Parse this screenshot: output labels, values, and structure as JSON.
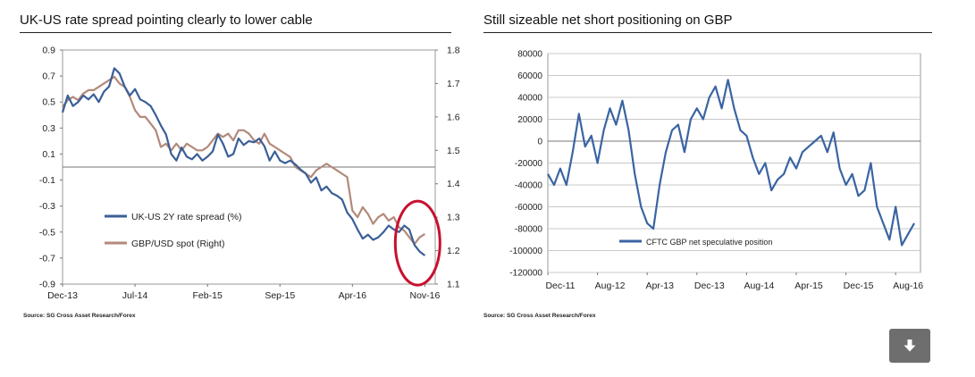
{
  "left_panel": {
    "title": "UK-US rate spread pointing clearly to lower cable",
    "source": "Source: SG Cross Asset Research/Forex"
  },
  "right_panel": {
    "title": "Still sizeable net short positioning on GBP",
    "source": "Source: SG Cross Asset Research/Forex"
  },
  "colors": {
    "spread": "#3a5f97",
    "gbpusd": "#b3897a",
    "cftc": "#3a64a3",
    "highlight_circle": "#c8102e",
    "download_button": "#6e6e6e"
  },
  "download_button": {
    "icon": "download-arrow-icon"
  },
  "chart_data": [
    {
      "type": "line",
      "title": "UK-US rate spread pointing clearly to lower cable",
      "x_ticks": [
        "Dec-13",
        "Jul-14",
        "Feb-15",
        "Sep-15",
        "Apr-16",
        "Nov-16"
      ],
      "y_left_ticks": [
        "0.9",
        "0.7",
        "0.5",
        "0.3",
        "0.1",
        "-0.1",
        "-0.3",
        "-0.5",
        "-0.7",
        "-0.9"
      ],
      "y_right_ticks": [
        "1.8",
        "1.7",
        "1.6",
        "1.5",
        "1.4",
        "1.3",
        "1.2",
        "1.1"
      ],
      "ylim_left": [
        -0.9,
        0.9
      ],
      "ylim_right": [
        1.1,
        1.8
      ],
      "xlim_months": [
        0,
        36
      ],
      "grid": true,
      "legend_position": "bottom-left",
      "annotation": "red circle around Nov-16 lows",
      "series": [
        {
          "name": "UK-US 2Y rate spread (%)",
          "axis": "left",
          "x": [
            0,
            0.5,
            1,
            1.5,
            2,
            2.5,
            3,
            3.5,
            4,
            4.5,
            5,
            5.5,
            6,
            6.5,
            7,
            7.5,
            8,
            8.5,
            9,
            9.5,
            10,
            10.5,
            11,
            11.5,
            12,
            12.5,
            13,
            13.5,
            14,
            14.5,
            15,
            15.5,
            16,
            16.5,
            17,
            17.5,
            18,
            18.5,
            19,
            19.5,
            20,
            20.5,
            21,
            21.5,
            22,
            22.5,
            23,
            23.5,
            24,
            24.5,
            25,
            25.5,
            26,
            26.5,
            27,
            27.5,
            28,
            28.5,
            29,
            29.5,
            30,
            30.5,
            31,
            31.5,
            32,
            32.5,
            33,
            33.5,
            34,
            34.5,
            35
          ],
          "values": [
            0.42,
            0.55,
            0.47,
            0.5,
            0.55,
            0.52,
            0.56,
            0.5,
            0.58,
            0.62,
            0.76,
            0.72,
            0.62,
            0.55,
            0.6,
            0.52,
            0.5,
            0.47,
            0.4,
            0.32,
            0.25,
            0.1,
            0.05,
            0.15,
            0.08,
            0.06,
            0.1,
            0.05,
            0.08,
            0.12,
            0.25,
            0.18,
            0.08,
            0.1,
            0.22,
            0.17,
            0.2,
            0.19,
            0.22,
            0.16,
            0.05,
            0.12,
            0.05,
            0.03,
            0.05,
            0.02,
            -0.02,
            -0.05,
            -0.12,
            -0.08,
            -0.18,
            -0.15,
            -0.2,
            -0.22,
            -0.25,
            -0.35,
            -0.4,
            -0.48,
            -0.55,
            -0.52,
            -0.56,
            -0.54,
            -0.5,
            -0.45,
            -0.48,
            -0.5,
            -0.45,
            -0.48,
            -0.6,
            -0.65,
            -0.68
          ]
        },
        {
          "name": "GBP/USD spot (Right)",
          "axis": "right",
          "x": [
            0,
            0.5,
            1,
            1.5,
            2,
            2.5,
            3,
            3.5,
            4,
            4.5,
            5,
            5.5,
            6,
            6.5,
            7,
            7.5,
            8,
            8.5,
            9,
            9.5,
            10,
            10.5,
            11,
            11.5,
            12,
            12.5,
            13,
            13.5,
            14,
            14.5,
            15,
            15.5,
            16,
            16.5,
            17,
            17.5,
            18,
            18.5,
            19,
            19.5,
            20,
            20.5,
            21,
            21.5,
            22,
            22.5,
            23,
            23.5,
            24,
            24.5,
            25,
            25.5,
            26,
            26.5,
            27,
            27.5,
            28,
            28.5,
            29,
            29.5,
            30,
            30.5,
            31,
            31.5,
            32,
            32.5,
            33,
            33.5,
            34,
            34.5,
            35
          ],
          "values": [
            1.63,
            1.65,
            1.66,
            1.65,
            1.67,
            1.68,
            1.68,
            1.69,
            1.7,
            1.71,
            1.72,
            1.7,
            1.69,
            1.66,
            1.62,
            1.6,
            1.6,
            1.58,
            1.56,
            1.51,
            1.52,
            1.5,
            1.52,
            1.5,
            1.52,
            1.51,
            1.5,
            1.5,
            1.51,
            1.53,
            1.55,
            1.54,
            1.55,
            1.53,
            1.56,
            1.56,
            1.55,
            1.53,
            1.52,
            1.55,
            1.52,
            1.51,
            1.5,
            1.49,
            1.48,
            1.45,
            1.44,
            1.43,
            1.42,
            1.44,
            1.45,
            1.46,
            1.45,
            1.44,
            1.43,
            1.42,
            1.32,
            1.3,
            1.33,
            1.31,
            1.28,
            1.3,
            1.31,
            1.29,
            1.3,
            1.27,
            1.26,
            1.24,
            1.22,
            1.24,
            1.25
          ]
        }
      ]
    },
    {
      "type": "line",
      "title": "Still sizeable net short positioning on GBP",
      "x_ticks": [
        "Dec-11",
        "Aug-12",
        "Apr-13",
        "Dec-13",
        "Aug-14",
        "Apr-15",
        "Dec-15",
        "Aug-16"
      ],
      "y_ticks": [
        "80000",
        "60000",
        "40000",
        "20000",
        "0",
        "-20000",
        "-40000",
        "-60000",
        "-80000",
        "-100000",
        "-120000"
      ],
      "ylim": [
        -120000,
        80000
      ],
      "xlim_months": [
        0,
        60
      ],
      "grid": true,
      "legend_position": "bottom-right",
      "series": [
        {
          "name": "CFTC GBP net speculative position",
          "x": [
            0,
            1,
            2,
            3,
            4,
            5,
            6,
            7,
            8,
            9,
            10,
            11,
            12,
            13,
            14,
            15,
            16,
            17,
            18,
            19,
            20,
            21,
            22,
            23,
            24,
            25,
            26,
            27,
            28,
            29,
            30,
            31,
            32,
            33,
            34,
            35,
            36,
            37,
            38,
            39,
            40,
            41,
            42,
            43,
            44,
            45,
            46,
            47,
            48,
            49,
            50,
            51,
            52,
            53,
            54,
            55,
            56,
            57,
            58,
            59
          ],
          "values": [
            -30000,
            -40000,
            -25000,
            -40000,
            -10000,
            25000,
            -5000,
            5000,
            -20000,
            10000,
            30000,
            15000,
            37000,
            10000,
            -30000,
            -60000,
            -75000,
            -80000,
            -40000,
            -10000,
            10000,
            15000,
            -10000,
            20000,
            30000,
            20000,
            40000,
            50000,
            30000,
            56000,
            30000,
            10000,
            5000,
            -15000,
            -30000,
            -20000,
            -45000,
            -35000,
            -30000,
            -15000,
            -25000,
            -10000,
            -5000,
            0,
            5000,
            -10000,
            8000,
            -25000,
            -40000,
            -30000,
            -50000,
            -45000,
            -20000,
            -60000,
            -75000,
            -90000,
            -60000,
            -95000,
            -85000,
            -75000
          ]
        }
      ]
    }
  ]
}
